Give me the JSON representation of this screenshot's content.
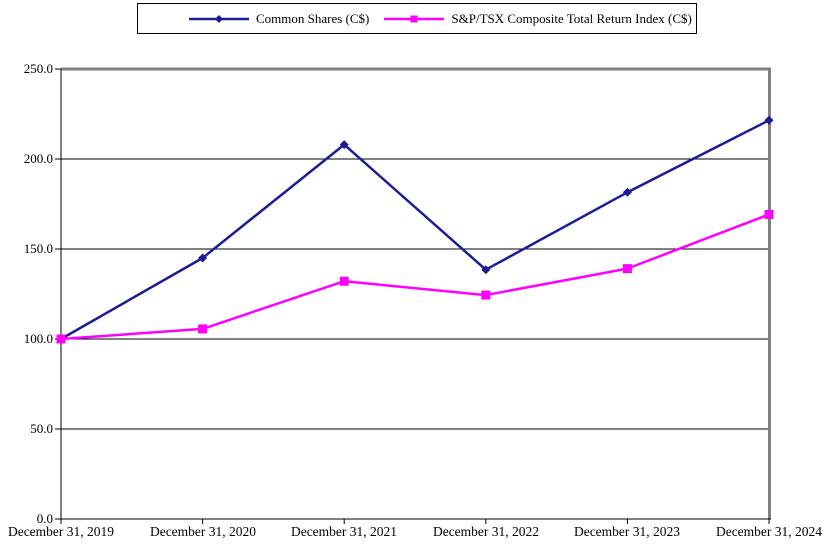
{
  "chart_data": {
    "type": "line",
    "title": "",
    "xlabel": "",
    "ylabel": "",
    "categories": [
      "December 31, 2019",
      "December 31, 2020",
      "December 31, 2021",
      "December 31, 2022",
      "December 31, 2023",
      "December 31, 2024"
    ],
    "series": [
      {
        "name": "Common Shares (C$)",
        "color": "#1C1C96",
        "marker": "diamond",
        "values": [
          100.0,
          145.0,
          208.0,
          138.5,
          181.5,
          221.5
        ]
      },
      {
        "name": "S&P/TSX Composite Total Return Index (C$)",
        "color": "#FF00FF",
        "marker": "square",
        "values": [
          100.0,
          105.6,
          132.1,
          124.4,
          139.1,
          169.2
        ]
      }
    ],
    "ylim": [
      0,
      250
    ],
    "ytick_interval": 50,
    "ytick_labels": [
      "0.0",
      "50.0",
      "100.0",
      "150.0",
      "200.0",
      "250.0"
    ],
    "grid": "horizontal",
    "gridline_color": "#000000",
    "axis_color": "#000000",
    "plot_border_color": "#808080",
    "background": "#FFFFFF",
    "legend_position": "top-center"
  },
  "legend": {
    "items": [
      {
        "label": "Common Shares (C$)",
        "color": "#1C1C96",
        "marker": "diamond"
      },
      {
        "label": "S&P/TSX Composite Total Return Index (C$)",
        "color": "#FF00FF",
        "marker": "square"
      }
    ]
  }
}
